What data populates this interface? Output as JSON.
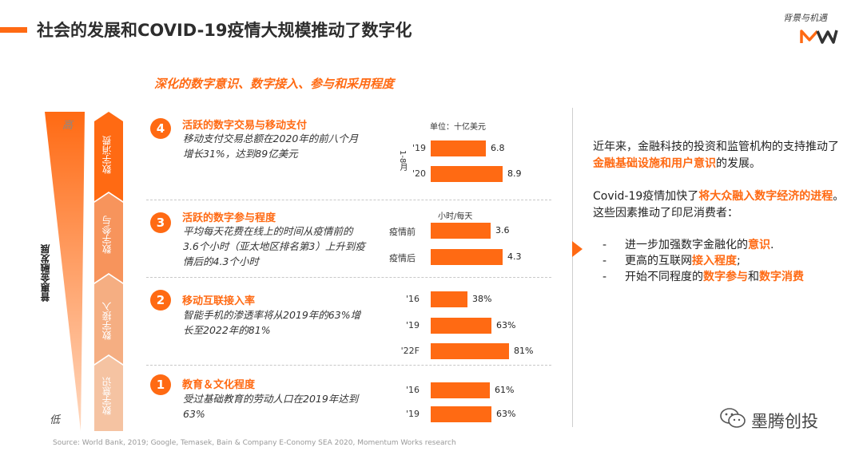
{
  "header": {
    "title": "社会的发展和COVID-19疫情大规模推动了数字化",
    "tag": "背景与机遇",
    "logo_text": "MW"
  },
  "subtitle": "深化的数字意识、数字接入、参与和采用程度",
  "axis": {
    "high": "高",
    "low": "低",
    "label": "普惠金融发展"
  },
  "stages": [
    "数字消费",
    "数字参与",
    "数字接入",
    "数字意识"
  ],
  "sections": [
    {
      "num": "4",
      "title": "活跃的数字交易与移动支付",
      "desc": "移动支付交易总额在2020年的前八个月增长31%，达到89亿美元",
      "unit": "单位：十亿美元",
      "side_label": "1-8月",
      "bars": [
        {
          "label": "'19",
          "value": 6.8,
          "display": "6.8"
        },
        {
          "label": "'20",
          "value": 8.9,
          "display": "8.9"
        }
      ]
    },
    {
      "num": "3",
      "title": "活跃的数字参与程度",
      "desc": "平均每天花费在线上的时间从疫情前的3.6个小时（亚太地区排名第3）上升到疫情后的4.3个小时",
      "unit": "小时/每天",
      "bars": [
        {
          "label": "疫情前",
          "value": 3.6,
          "display": "3.6"
        },
        {
          "label": "疫情后",
          "value": 4.3,
          "display": "4.3"
        }
      ]
    },
    {
      "num": "2",
      "title": "移动互联接入率",
      "desc": "智能手机的渗透率将从2019年的63%增长至2022年的81%",
      "bars": [
        {
          "label": "'16",
          "value": 38,
          "display": "38%"
        },
        {
          "label": "'19",
          "value": 63,
          "display": "63%"
        },
        {
          "label": "'22F",
          "value": 81,
          "display": "81%"
        }
      ]
    },
    {
      "num": "1",
      "title": "教育＆文化程度",
      "desc": "受过基础教育的劳动人口在2019年达到63%",
      "bars": [
        {
          "label": "'16",
          "value": 61,
          "display": "61%"
        },
        {
          "label": "'19",
          "value": 63,
          "display": "63%"
        }
      ]
    }
  ],
  "right": {
    "p1_a": "近年来，金融科技的投资和监管机构的支持推动了",
    "p1_hl": "金融基础设施和用户意识",
    "p1_b": "的发展。",
    "p2_a": "Covid-19疫情加快了",
    "p2_hl": "将大众融入数字经济的进程",
    "p2_b": "。这些因素推动了印尼消费者：",
    "b1_a": "进一步加强数字金融化的",
    "b1_hl": "意识",
    "b1_b": ".",
    "b2_a": "更高的互联网",
    "b2_hl": "接入程度",
    "b2_b": ";",
    "b3_a": "开始不同程度的",
    "b3_hl1": "数字参与",
    "b3_mid": "和",
    "b3_hl2": "数字消费"
  },
  "source": "Source: World Bank, 2019; Google, Temasek, Bain & Company E-Conomy SEA 2020, Momentum Works research",
  "watermark": "墨腾创投",
  "colors": {
    "accent": "#ff6a13",
    "chevron_light": "#f5b48a"
  }
}
